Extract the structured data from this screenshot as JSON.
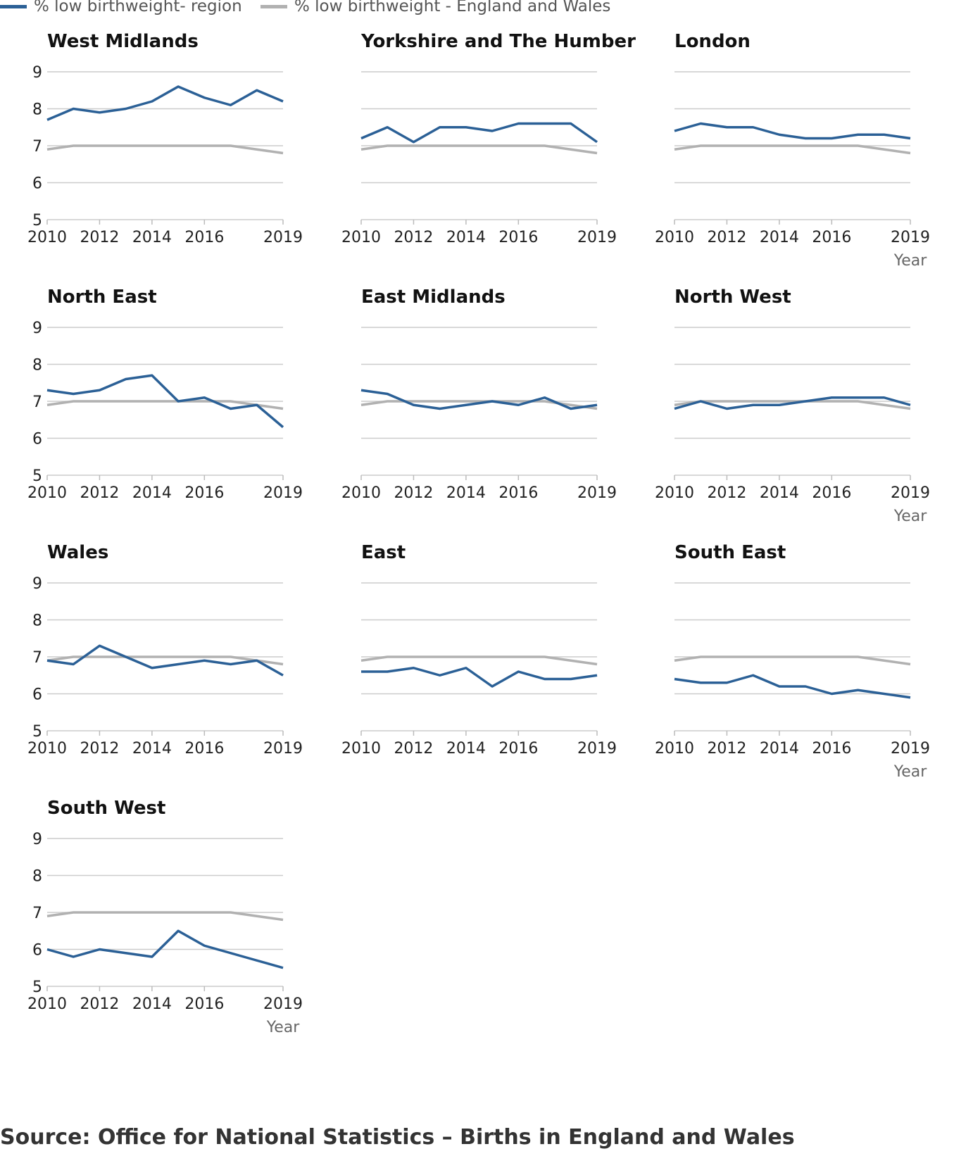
{
  "legend": {
    "region_label": "% low birthweight- region",
    "national_label": "% low birthweight - England and Wales"
  },
  "colors": {
    "region": "#2b6096",
    "national": "#b1b1b1",
    "grid": "#cccccc",
    "text": "#222222"
  },
  "source": "Source: Office for National Statistics – Births in England and Wales",
  "chart_data": {
    "type": "line",
    "x_tick_labels": [
      "2010",
      "2012",
      "2014",
      "2016",
      "2019"
    ],
    "x_ticks": [
      2010,
      2012,
      2014,
      2016,
      2019
    ],
    "y_ticks": [
      5,
      6,
      7,
      8,
      9
    ],
    "ylim": [
      5,
      9
    ],
    "xlim": [
      2010,
      2019
    ],
    "xlabel": "Year",
    "grid": true,
    "legend_position": "top-left",
    "x": [
      2010,
      2011,
      2012,
      2013,
      2014,
      2015,
      2016,
      2017,
      2018,
      2019
    ],
    "national": {
      "name": "% low birthweight - England and Wales",
      "values": [
        6.9,
        7.0,
        7.0,
        7.0,
        7.0,
        7.0,
        7.0,
        7.0,
        6.9,
        6.8
      ]
    },
    "panels": [
      {
        "title": "West Midlands",
        "values": [
          7.7,
          8.0,
          7.9,
          8.0,
          8.2,
          8.6,
          8.3,
          8.1,
          8.5,
          8.2
        ]
      },
      {
        "title": "Yorkshire and The Humber",
        "values": [
          7.2,
          7.5,
          7.1,
          7.5,
          7.5,
          7.4,
          7.6,
          7.6,
          7.6,
          7.1
        ]
      },
      {
        "title": "London",
        "values": [
          7.4,
          7.6,
          7.5,
          7.5,
          7.3,
          7.2,
          7.2,
          7.3,
          7.3,
          7.2
        ]
      },
      {
        "title": "North East",
        "values": [
          7.3,
          7.2,
          7.3,
          7.6,
          7.7,
          7.0,
          7.1,
          6.8,
          6.9,
          6.3
        ]
      },
      {
        "title": "East Midlands",
        "values": [
          7.3,
          7.2,
          6.9,
          6.8,
          6.9,
          7.0,
          6.9,
          7.1,
          6.8,
          6.9
        ]
      },
      {
        "title": "North West",
        "values": [
          6.8,
          7.0,
          6.8,
          6.9,
          6.9,
          7.0,
          7.1,
          7.1,
          7.1,
          6.9
        ]
      },
      {
        "title": "Wales",
        "values": [
          6.9,
          6.8,
          7.3,
          7.0,
          6.7,
          6.8,
          6.9,
          6.8,
          6.9,
          6.5
        ]
      },
      {
        "title": "East",
        "values": [
          6.6,
          6.6,
          6.7,
          6.5,
          6.7,
          6.2,
          6.6,
          6.4,
          6.4,
          6.5
        ]
      },
      {
        "title": "South East",
        "values": [
          6.4,
          6.3,
          6.3,
          6.5,
          6.2,
          6.2,
          6.0,
          6.1,
          6.0,
          5.9
        ]
      },
      {
        "title": "South West",
        "values": [
          6.0,
          5.8,
          6.0,
          5.9,
          5.8,
          6.5,
          6.1,
          5.9,
          5.7,
          5.5
        ]
      }
    ]
  }
}
